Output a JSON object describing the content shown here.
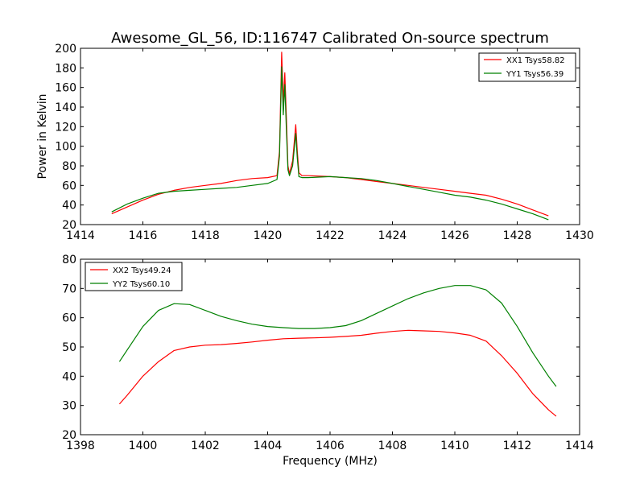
{
  "colors": {
    "xx": "#ff0000",
    "yy": "#008000",
    "axis": "#000000",
    "background": "#ffffff"
  },
  "chart_data": [
    {
      "type": "line",
      "title": "Awesome_GL_56, ID:116747 Calibrated On-source spectrum",
      "xlabel": "",
      "ylabel": "Power in Kelvin",
      "xlim": [
        1414,
        1430
      ],
      "ylim": [
        20,
        200
      ],
      "xticks": [
        1414,
        1416,
        1418,
        1420,
        1422,
        1424,
        1426,
        1428,
        1430
      ],
      "yticks": [
        20,
        40,
        60,
        80,
        100,
        120,
        140,
        160,
        180,
        200
      ],
      "legend": "top-right",
      "grid": false,
      "series": [
        {
          "name": "XX1 Tsys58.82",
          "color": "#ff0000",
          "x": [
            1415.0,
            1415.5,
            1416.0,
            1416.5,
            1417.0,
            1417.5,
            1418.0,
            1418.5,
            1419.0,
            1419.5,
            1420.0,
            1420.3,
            1420.38,
            1420.45,
            1420.5,
            1420.55,
            1420.6,
            1420.65,
            1420.7,
            1420.8,
            1420.9,
            1420.95,
            1421.0,
            1421.1,
            1421.3,
            1422.0,
            1422.5,
            1423.0,
            1423.5,
            1424.0,
            1424.5,
            1425.0,
            1425.5,
            1426.0,
            1426.5,
            1427.0,
            1427.5,
            1428.0,
            1428.5,
            1429.0
          ],
          "values": [
            31,
            38,
            45,
            51,
            55,
            58,
            60,
            62,
            65,
            67,
            68,
            70,
            95,
            196,
            145,
            175,
            130,
            80,
            72,
            85,
            122,
            95,
            73,
            70,
            70,
            69,
            68,
            66,
            64,
            62,
            60,
            58,
            56,
            54,
            52,
            50,
            46,
            41,
            35,
            29
          ]
        },
        {
          "name": "YY1 Tsys56.39",
          "color": "#008000",
          "x": [
            1415.0,
            1415.5,
            1416.0,
            1416.5,
            1417.0,
            1417.5,
            1418.0,
            1418.5,
            1419.0,
            1419.5,
            1420.0,
            1420.3,
            1420.38,
            1420.45,
            1420.5,
            1420.55,
            1420.6,
            1420.65,
            1420.7,
            1420.8,
            1420.9,
            1420.95,
            1421.0,
            1421.1,
            1421.3,
            1422.0,
            1422.5,
            1423.0,
            1423.5,
            1424.0,
            1424.5,
            1425.0,
            1425.5,
            1426.0,
            1426.5,
            1427.0,
            1427.5,
            1428.0,
            1428.5,
            1429.0
          ],
          "values": [
            33,
            41,
            47,
            52,
            54,
            55,
            56,
            57,
            58,
            60,
            62,
            66,
            90,
            181,
            132,
            163,
            118,
            76,
            70,
            80,
            113,
            88,
            69,
            68,
            68,
            69,
            68,
            67,
            65,
            62,
            59,
            56,
            53,
            50,
            48,
            45,
            41,
            36,
            31,
            25
          ]
        }
      ]
    },
    {
      "type": "line",
      "title": "",
      "xlabel": "Frequency (MHz)",
      "ylabel": "",
      "xlim": [
        1398,
        1414
      ],
      "ylim": [
        20,
        80
      ],
      "xticks": [
        1398,
        1400,
        1402,
        1404,
        1406,
        1408,
        1410,
        1412,
        1414
      ],
      "yticks": [
        20,
        30,
        40,
        50,
        60,
        70,
        80
      ],
      "legend": "top-left",
      "grid": false,
      "series": [
        {
          "name": "XX2 Tsys49.24",
          "color": "#ff0000",
          "x": [
            1399.25,
            1399.5,
            1400.0,
            1400.5,
            1401.0,
            1401.5,
            1402.0,
            1402.5,
            1403.0,
            1403.5,
            1404.0,
            1404.5,
            1405.0,
            1405.5,
            1406.0,
            1406.5,
            1407.0,
            1407.5,
            1408.0,
            1408.5,
            1409.0,
            1409.5,
            1410.0,
            1410.5,
            1411.0,
            1411.5,
            1412.0,
            1412.5,
            1413.0,
            1413.25
          ],
          "values": [
            30.5,
            33.5,
            40,
            45,
            48.8,
            50,
            50.6,
            50.8,
            51.2,
            51.7,
            52.3,
            52.8,
            53.0,
            53.1,
            53.3,
            53.6,
            54.0,
            54.7,
            55.3,
            55.7,
            55.5,
            55.3,
            54.8,
            54.0,
            52.0,
            47.0,
            41.0,
            34.0,
            28.5,
            26.3
          ]
        },
        {
          "name": "YY2 Tsys60.10",
          "color": "#008000",
          "x": [
            1399.25,
            1399.5,
            1400.0,
            1400.5,
            1401.0,
            1401.5,
            1402.0,
            1402.5,
            1403.0,
            1403.5,
            1404.0,
            1404.5,
            1405.0,
            1405.5,
            1406.0,
            1406.5,
            1407.0,
            1407.5,
            1408.0,
            1408.5,
            1409.0,
            1409.5,
            1410.0,
            1410.5,
            1411.0,
            1411.5,
            1412.0,
            1412.5,
            1413.0,
            1413.25
          ],
          "values": [
            45,
            49,
            57,
            62.5,
            64.8,
            64.5,
            62.5,
            60.5,
            59,
            57.8,
            57,
            56.6,
            56.3,
            56.3,
            56.6,
            57.3,
            59,
            61.5,
            64,
            66.5,
            68.5,
            70,
            71,
            71,
            69.5,
            65,
            57,
            48,
            40,
            36.5
          ]
        }
      ]
    }
  ]
}
